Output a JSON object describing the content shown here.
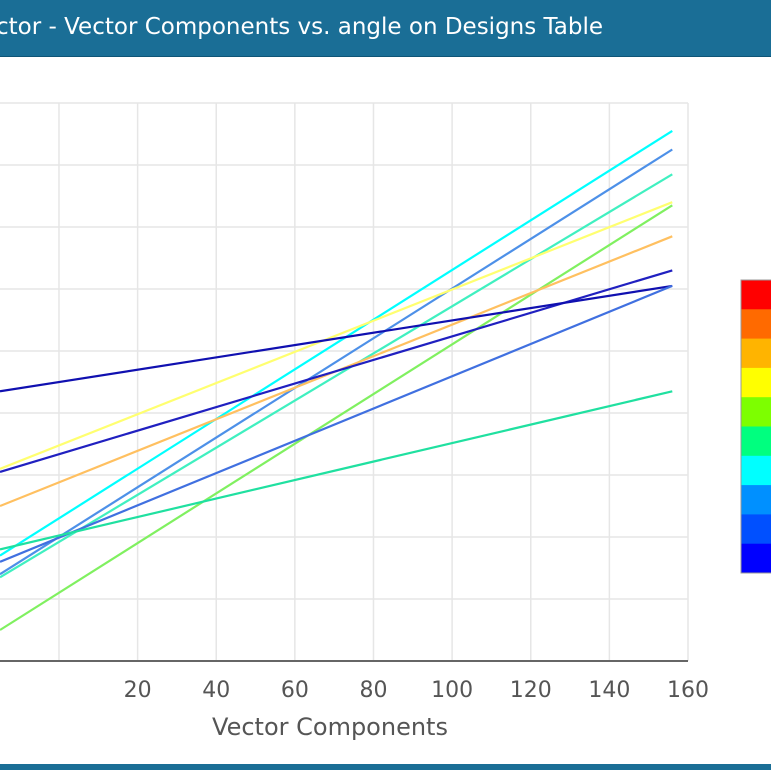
{
  "window": {
    "title": "ctor - Vector Components vs. angle on Designs Table"
  },
  "chart_data": {
    "type": "line",
    "xlabel": "Vector Components",
    "ylabel": "",
    "xlim": [
      -15,
      160
    ],
    "ylim": [
      0,
      9
    ],
    "x_ticks": [
      20,
      40,
      60,
      80,
      100,
      120,
      140,
      160
    ],
    "grid": true,
    "legend": "colorbar-right",
    "colorbar_colors": [
      "#ff0000",
      "#ff6a00",
      "#ffb400",
      "#ffff00",
      "#7dff00",
      "#00ff7f",
      "#00ffff",
      "#0090ff",
      "#0050ff",
      "#0000ff"
    ],
    "series": [
      {
        "color": "#00ffff",
        "x": [
          -15,
          156
        ],
        "y": [
          1.7,
          8.55
        ]
      },
      {
        "color": "#4d90e8",
        "x": [
          -15,
          156
        ],
        "y": [
          1.4,
          8.25
        ]
      },
      {
        "color": "#40f0c0",
        "x": [
          -15,
          156
        ],
        "y": [
          1.35,
          7.85
        ]
      },
      {
        "color": "#ffff70",
        "x": [
          -15,
          156
        ],
        "y": [
          3.1,
          7.4
        ]
      },
      {
        "color": "#80f060",
        "x": [
          -15,
          156
        ],
        "y": [
          0.5,
          7.35
        ]
      },
      {
        "color": "#ffc060",
        "x": [
          -15,
          156
        ],
        "y": [
          2.5,
          6.85
        ]
      },
      {
        "color": "#2020c0",
        "x": [
          -15,
          156
        ],
        "y": [
          3.05,
          6.3
        ]
      },
      {
        "color": "#1010b0",
        "x": [
          -15,
          156
        ],
        "y": [
          4.35,
          6.05
        ]
      },
      {
        "color": "#4070e0",
        "x": [
          -15,
          156
        ],
        "y": [
          1.6,
          6.05
        ]
      },
      {
        "color": "#20e0a0",
        "x": [
          -15,
          156
        ],
        "y": [
          1.8,
          4.35
        ]
      }
    ]
  }
}
